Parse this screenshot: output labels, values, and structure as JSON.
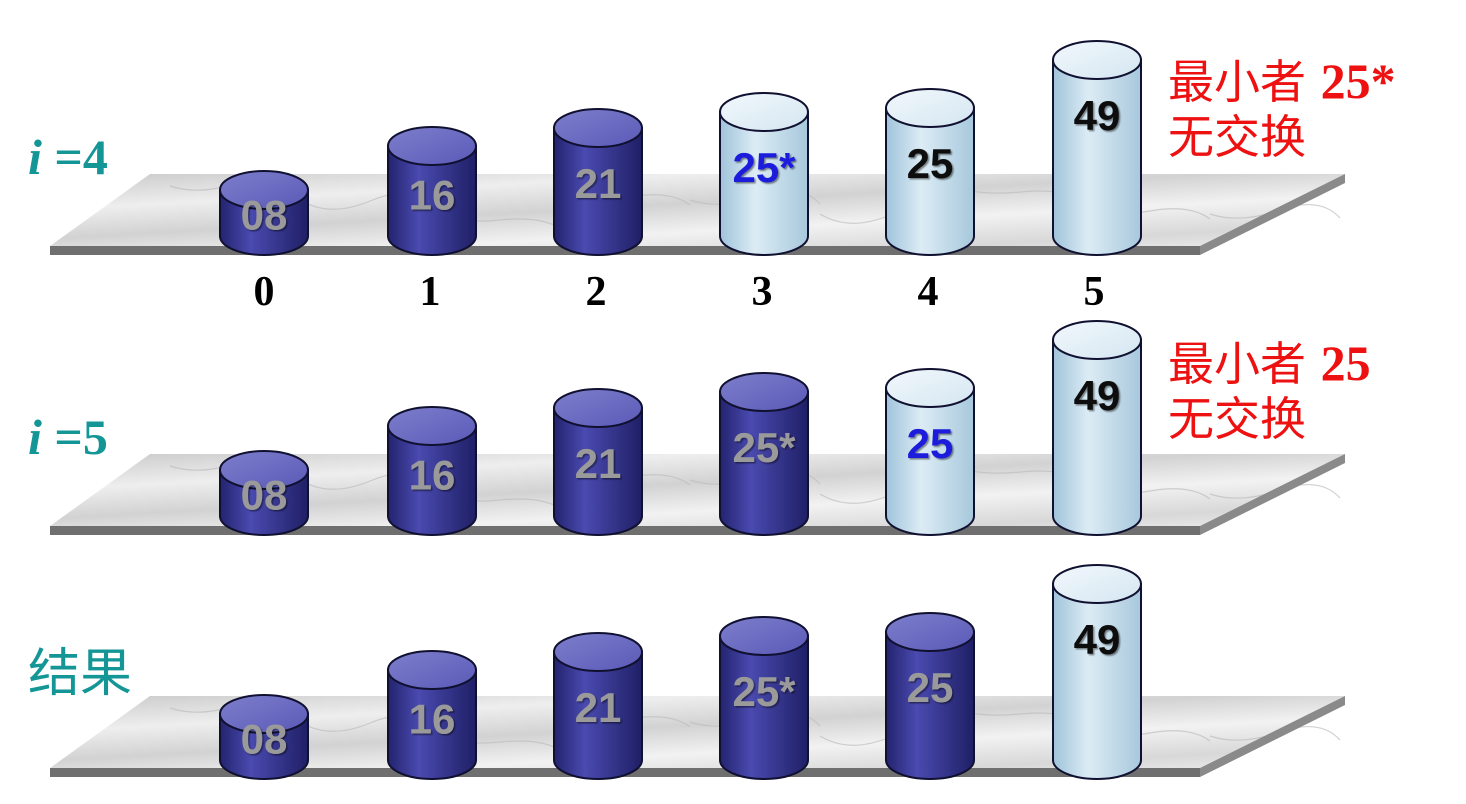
{
  "colors": {
    "label": "#149696",
    "note": "#ee1111",
    "sorted_fill": "#3a3a96",
    "unsorted_fill": "#bcd8e8",
    "minimum_text": "#1b1bdc",
    "sorted_text": "#9a9a9a",
    "unsorted_text": "#111111"
  },
  "indices": [
    "0",
    "1",
    "2",
    "3",
    "4",
    "5"
  ],
  "rows": [
    {
      "id": "i4",
      "label_var": "i",
      "label_rest": " =4",
      "note": {
        "line1_prefix": "最小者 ",
        "line1_value": "25*",
        "line2": "无交换"
      },
      "cells": [
        {
          "value": "08",
          "state": "sorted"
        },
        {
          "value": "16",
          "state": "sorted"
        },
        {
          "value": "21",
          "state": "sorted"
        },
        {
          "value": "25*",
          "state": "minimum"
        },
        {
          "value": "25",
          "state": "unsorted"
        },
        {
          "value": "49",
          "state": "unsorted"
        }
      ]
    },
    {
      "id": "i5",
      "label_var": "i",
      "label_rest": " =5",
      "note": {
        "line1_prefix": "最小者 ",
        "line1_value": "25",
        "line2": "无交换"
      },
      "cells": [
        {
          "value": "08",
          "state": "sorted"
        },
        {
          "value": "16",
          "state": "sorted"
        },
        {
          "value": "21",
          "state": "sorted"
        },
        {
          "value": "25*",
          "state": "sorted"
        },
        {
          "value": "25",
          "state": "minimum"
        },
        {
          "value": "49",
          "state": "unsorted"
        }
      ]
    },
    {
      "id": "result",
      "label_text": "结果",
      "cells": [
        {
          "value": "08",
          "state": "sorted"
        },
        {
          "value": "16",
          "state": "sorted"
        },
        {
          "value": "21",
          "state": "sorted"
        },
        {
          "value": "25*",
          "state": "sorted"
        },
        {
          "value": "25",
          "state": "sorted"
        },
        {
          "value": "49",
          "state": "unsorted"
        }
      ]
    }
  ]
}
